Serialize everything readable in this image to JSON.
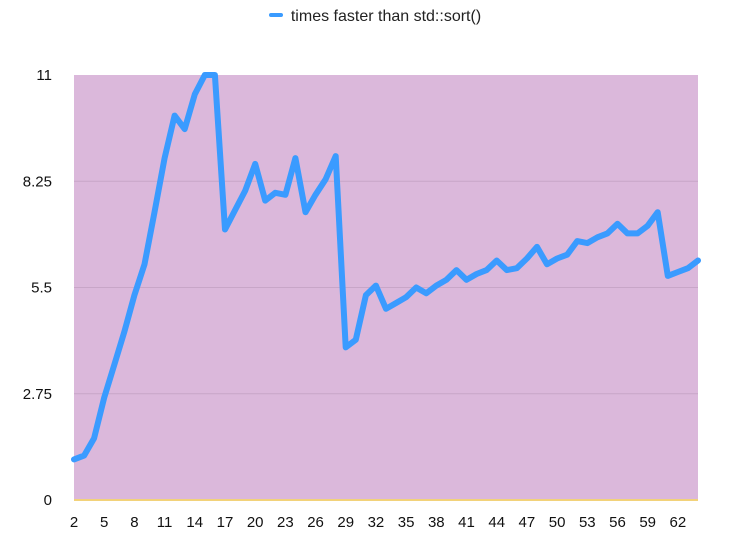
{
  "chart_data": {
    "type": "line",
    "title": "",
    "xlabel": "",
    "ylabel": "",
    "ylim": [
      0,
      11
    ],
    "yticks": [
      "0",
      "2.75",
      "5.5",
      "8.25",
      "11"
    ],
    "xtick_labels": [
      "2",
      "5",
      "8",
      "11",
      "14",
      "17",
      "20",
      "23",
      "26",
      "29",
      "32",
      "35",
      "38",
      "41",
      "44",
      "47",
      "50",
      "53",
      "56",
      "59",
      "62"
    ],
    "grid": true,
    "legend_position": "top",
    "plot_background": "#dbb8db",
    "series": [
      {
        "name": "times faster than std::sort()",
        "color": "#3a9bff",
        "x": [
          2,
          3,
          4,
          5,
          6,
          7,
          8,
          9,
          10,
          11,
          12,
          13,
          14,
          15,
          16,
          17,
          18,
          19,
          20,
          21,
          22,
          23,
          24,
          25,
          26,
          27,
          28,
          29,
          30,
          31,
          32,
          33,
          34,
          35,
          36,
          37,
          38,
          39,
          40,
          41,
          42,
          43,
          44,
          45,
          46,
          47,
          48,
          49,
          50,
          51,
          52,
          53,
          54,
          55,
          56,
          57,
          58,
          59,
          60,
          61,
          62,
          63,
          64
        ],
        "values": [
          1.05,
          1.15,
          1.6,
          2.65,
          3.5,
          4.35,
          5.3,
          6.1,
          7.45,
          8.85,
          9.95,
          9.6,
          10.5,
          11.0,
          11.0,
          7.0,
          7.5,
          8.0,
          8.7,
          7.75,
          7.95,
          7.9,
          8.85,
          7.45,
          7.9,
          8.3,
          8.9,
          3.95,
          4.15,
          5.3,
          5.55,
          4.95,
          5.1,
          5.25,
          5.5,
          5.35,
          5.55,
          5.7,
          5.95,
          5.7,
          5.85,
          5.95,
          6.2,
          5.95,
          6.0,
          6.25,
          6.55,
          6.1,
          6.25,
          6.35,
          6.7,
          6.65,
          6.8,
          6.9,
          7.15,
          6.9,
          6.9,
          7.1,
          7.45,
          5.8,
          5.9,
          6.0,
          6.2
        ]
      }
    ]
  }
}
